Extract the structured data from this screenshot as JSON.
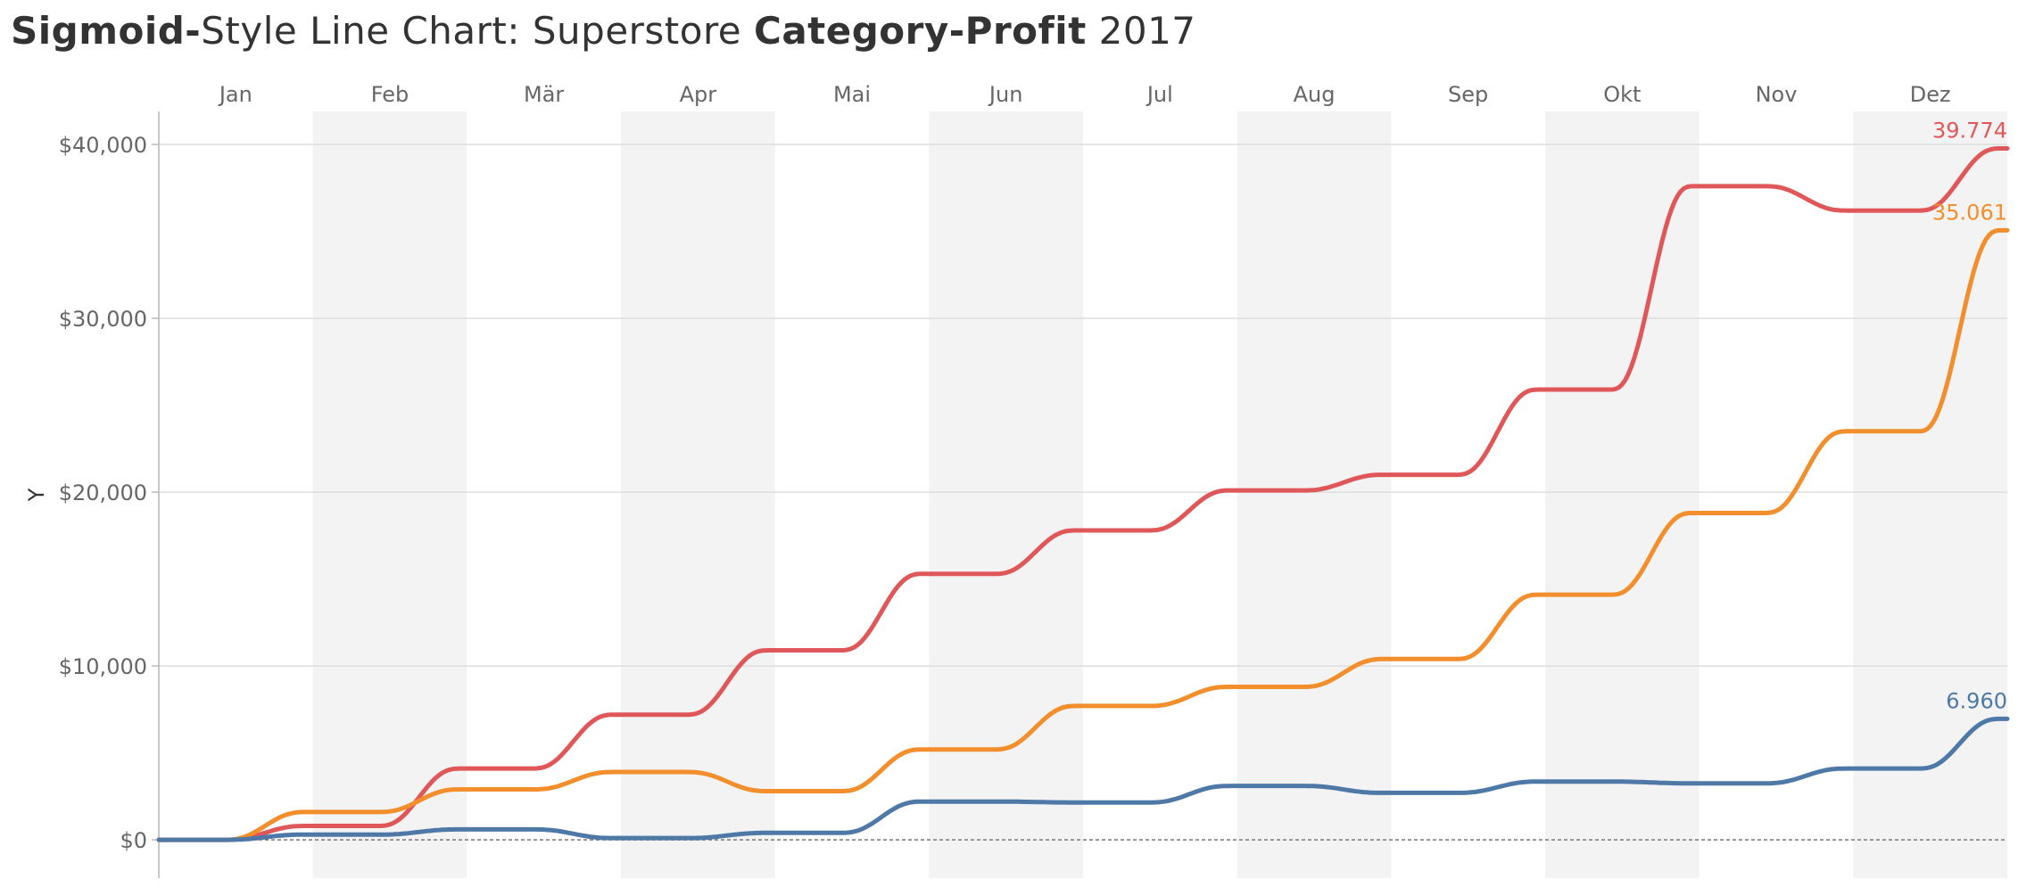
{
  "title": {
    "part1": "Sigmoid-",
    "part2": "Style Line Chart: Superstore ",
    "part3": "Category-Profit",
    "part4": " 2017"
  },
  "chart_data": {
    "type": "line",
    "ylabel": "Y",
    "ylim": [
      -2200,
      41900
    ],
    "yticks": [
      {
        "value": 0,
        "label": "$0"
      },
      {
        "value": 10000,
        "label": "$10,000"
      },
      {
        "value": 20000,
        "label": "$20,000"
      },
      {
        "value": 30000,
        "label": "$30,000"
      },
      {
        "value": 40000,
        "label": "$40,000"
      }
    ],
    "months": [
      "Jan",
      "Feb",
      "Mär",
      "Apr",
      "Mai",
      "Jun",
      "Jul",
      "Aug",
      "Sep",
      "Okt",
      "Nov",
      "Dez"
    ],
    "shaded_months": [
      1,
      3,
      5,
      7,
      9,
      11
    ],
    "zero_line": "dashed",
    "grid": true,
    "series": [
      {
        "color": "#e05759",
        "start": 0,
        "values": [
          800,
          4100,
          7200,
          10900,
          15300,
          17800,
          20100,
          21000,
          25900,
          37600,
          36200,
          39774
        ],
        "end_label": "39.774"
      },
      {
        "color": "#f28e2b",
        "start": 0,
        "values": [
          1600,
          2900,
          3900,
          2800,
          5200,
          7700,
          8800,
          10400,
          14100,
          18800,
          23500,
          35061
        ],
        "end_label": "35.061"
      },
      {
        "color": "#4e79a7",
        "start": 0,
        "values": [
          300,
          600,
          100,
          400,
          2200,
          2150,
          3100,
          2700,
          3350,
          3250,
          4100,
          6960
        ],
        "end_label": "6.960"
      }
    ]
  }
}
